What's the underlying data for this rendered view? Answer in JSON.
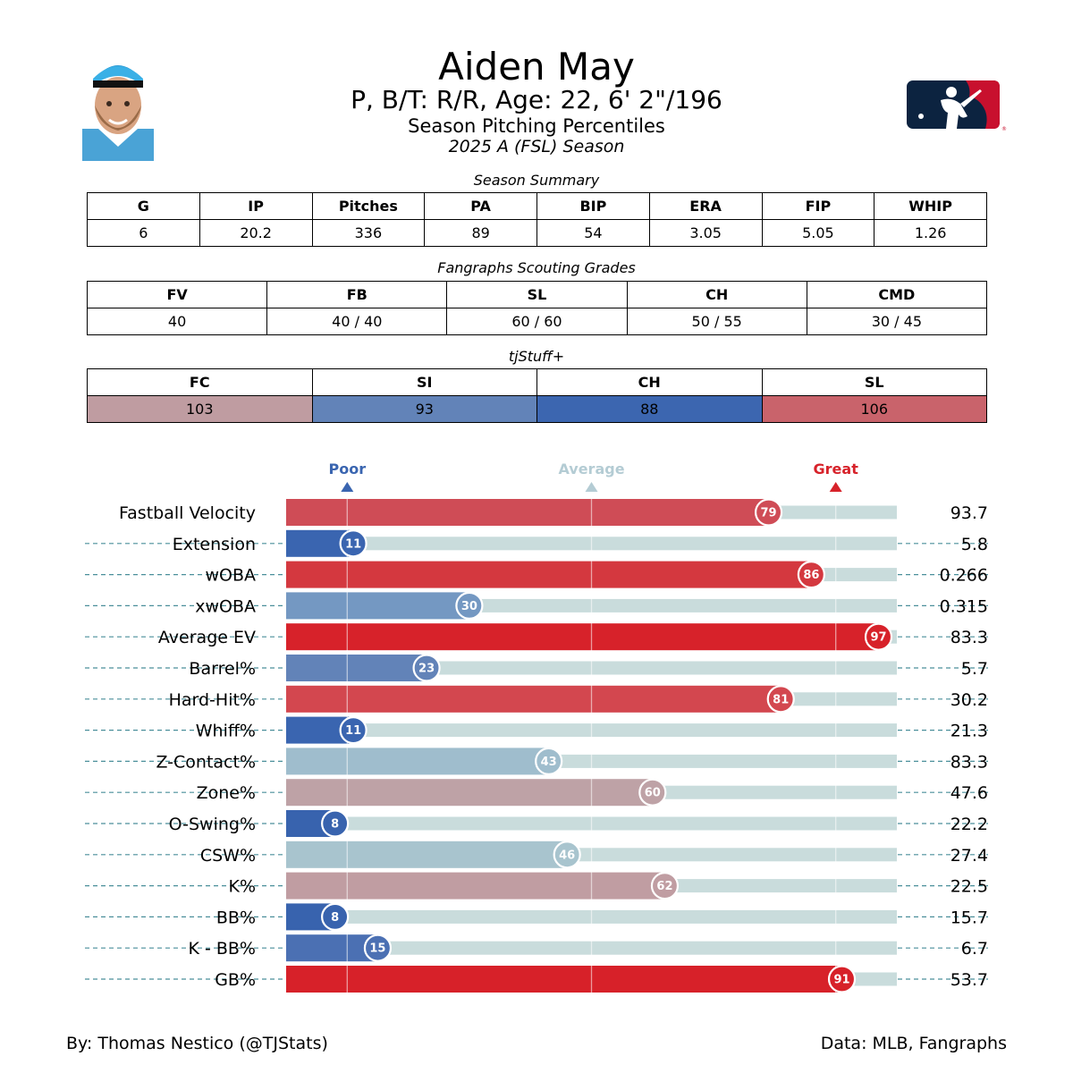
{
  "header": {
    "player_name": "Aiden May",
    "bio_line": "P, B/T: R/R, Age: 22, 6' 2\"/196",
    "subtitle": "Season Pitching Percentiles",
    "season": "2025 A (FSL) Season"
  },
  "season_summary": {
    "title": "Season Summary",
    "columns": [
      "G",
      "IP",
      "Pitches",
      "PA",
      "BIP",
      "ERA",
      "FIP",
      "WHIP"
    ],
    "values": [
      "6",
      "20.2",
      "336",
      "89",
      "54",
      "3.05",
      "5.05",
      "1.26"
    ]
  },
  "scouting": {
    "title": "Fangraphs Scouting Grades",
    "columns": [
      "FV",
      "FB",
      "SL",
      "CH",
      "CMD"
    ],
    "values": [
      "40",
      "40 / 40",
      "60 / 60",
      "50 / 55",
      "30 / 45"
    ]
  },
  "tjstuff": {
    "title": "tjStuff+",
    "columns": [
      "FC",
      "SI",
      "CH",
      "SL"
    ],
    "values": [
      "103",
      "93",
      "88",
      "106"
    ],
    "colors": [
      "#bf9ca1",
      "#6283b8",
      "#3c66b0",
      "#c9636b"
    ]
  },
  "chart_data": {
    "type": "bar",
    "orientation": "horizontal",
    "legend": {
      "poor": "Poor",
      "average": "Average",
      "great": "Great",
      "poor_value": 10,
      "average_value": 50,
      "great_value": 90
    },
    "xlim": [
      0,
      100
    ],
    "categories": [
      "Fastball Velocity",
      "Extension",
      "wOBA",
      "xwOBA",
      "Average EV",
      "Barrel%",
      "Hard-Hit%",
      "Whiff%",
      "Z-Contact%",
      "Zone%",
      "O-Swing%",
      "CSW%",
      "K%",
      "BB%",
      "K - BB%",
      "GB%"
    ],
    "percentiles": [
      79,
      11,
      86,
      30,
      97,
      23,
      81,
      11,
      43,
      60,
      8,
      46,
      62,
      8,
      15,
      91
    ],
    "stat_values": [
      "93.7",
      "5.8",
      "0.266",
      "0.315",
      "83.3",
      "5.7",
      "30.2",
      "21.3",
      "83.3",
      "47.6",
      "22.2",
      "27.4",
      "22.5",
      "15.7",
      "6.7",
      "53.7"
    ],
    "colors": [
      "#cf4c56",
      "#3a65b0",
      "#d4383f",
      "#7498c2",
      "#d7222a",
      "#6283b8",
      "#d3474f",
      "#3a65b0",
      "#9fbdcd",
      "#bea2a6",
      "#3863ae",
      "#a8c4ce",
      "#c09da2",
      "#3863ae",
      "#4b70b3",
      "#d72129"
    ],
    "track_color": "#c9dcdc",
    "poor_color": "#3a65b0",
    "average_color": "#b4ccd4",
    "great_color": "#d7222a"
  },
  "footer": {
    "credit": "By: Thomas Nestico (@TJStats)",
    "source": "Data: MLB, Fangraphs"
  }
}
